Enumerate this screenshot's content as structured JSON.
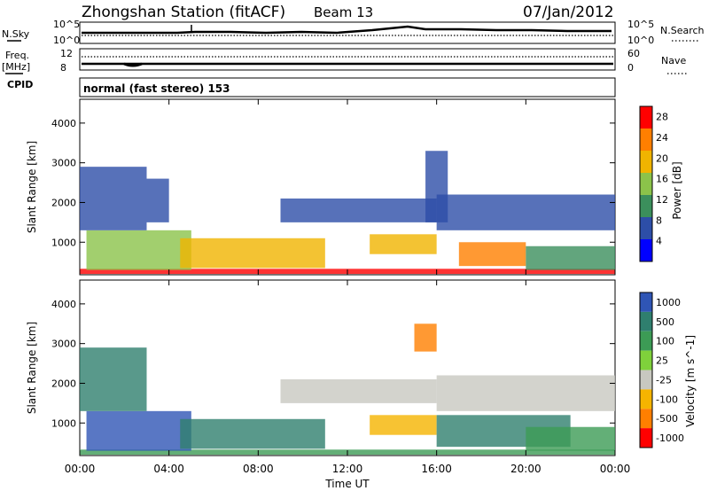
{
  "header": {
    "station": "Zhongshan Station (fitACF)",
    "beam": "Beam 13",
    "date": "07/Jan/2012"
  },
  "noise_panel": {
    "left_label": "N.Sky",
    "left_ticks": [
      "10^5",
      "10^0"
    ],
    "right_ticks": [
      "10^5",
      "10^0"
    ],
    "right_label": "N.Search"
  },
  "freq_panel": {
    "left_label_1": "Freq.",
    "left_label_2": "[MHz]",
    "left_ticks": [
      "12",
      "8"
    ],
    "right_ticks": [
      "60",
      "0"
    ],
    "right_label": "Nave",
    "cpid_label": "CPID"
  },
  "cpid_text": "normal (fast stereo) 153",
  "chart_data": [
    {
      "type": "heatmap",
      "name": "power",
      "ylabel": "Slant Range [km]",
      "ylim": [
        180,
        4600
      ],
      "yticks": [
        1000,
        2000,
        3000,
        4000
      ],
      "xlabel": "Time UT",
      "xlim": [
        0,
        24
      ],
      "xticks": [
        "00:00",
        "04:00",
        "08:00",
        "12:00",
        "16:00",
        "20:00",
        "00:00"
      ],
      "colorbar": {
        "label": "Power [dB]",
        "ticks": [
          4,
          8,
          12,
          16,
          20,
          24,
          28
        ],
        "range": [
          0,
          30
        ],
        "colors": [
          "#0000ff",
          "#2d4ea8",
          "#3b8f5c",
          "#8bc34a",
          "#f0b400",
          "#ff7f00",
          "#ff0000"
        ]
      },
      "bands": [
        {
          "t": [
            0,
            24
          ],
          "r": [
            200,
            330
          ],
          "level": 26
        },
        {
          "t": [
            0.3,
            5
          ],
          "r": [
            300,
            1300
          ],
          "level": 14
        },
        {
          "t": [
            4.5,
            11
          ],
          "r": [
            350,
            1100
          ],
          "level": 20
        },
        {
          "t": [
            0,
            3
          ],
          "r": [
            1300,
            2900
          ],
          "level": 6
        },
        {
          "t": [
            3,
            4
          ],
          "r": [
            1500,
            2600
          ],
          "level": 7
        },
        {
          "t": [
            9,
            16
          ],
          "r": [
            1500,
            2100
          ],
          "level": 6
        },
        {
          "t": [
            13,
            16
          ],
          "r": [
            700,
            1200
          ],
          "level": 21
        },
        {
          "t": [
            15.5,
            16.5
          ],
          "r": [
            1500,
            3300
          ],
          "level": 7
        },
        {
          "t": [
            16,
            24
          ],
          "r": [
            1300,
            2200
          ],
          "level": 8
        },
        {
          "t": [
            17,
            20
          ],
          "r": [
            400,
            1000
          ],
          "level": 22
        },
        {
          "t": [
            20,
            24
          ],
          "r": [
            300,
            900
          ],
          "level": 12
        }
      ]
    },
    {
      "type": "heatmap",
      "name": "velocity",
      "ylabel": "Slant Range [km]",
      "ylim": [
        180,
        4600
      ],
      "yticks": [
        1000,
        2000,
        3000,
        4000
      ],
      "xlabel": "Time UT",
      "xlim": [
        0,
        24
      ],
      "xticks": [
        "00:00",
        "04:00",
        "08:00",
        "12:00",
        "16:00",
        "20:00",
        "00:00"
      ],
      "colorbar": {
        "label": "Velocity [m s^-1]",
        "ticks": [
          "1000",
          "500",
          "100",
          "25",
          "-25",
          "-100",
          "-500",
          "-1000"
        ],
        "colors": [
          "#2f55b5",
          "#2f7f6e",
          "#3c9b55",
          "#7fd13b",
          "#c8c8c0",
          "#f5b400",
          "#ff7f00",
          "#ff0000"
        ]
      },
      "bands": [
        {
          "t": [
            0,
            24
          ],
          "r": [
            200,
            330
          ],
          "level": 2
        },
        {
          "t": [
            0.3,
            5
          ],
          "r": [
            300,
            1300
          ],
          "level": 0
        },
        {
          "t": [
            4.5,
            11
          ],
          "r": [
            350,
            1100
          ],
          "level": 1
        },
        {
          "t": [
            0,
            3
          ],
          "r": [
            1300,
            2900
          ],
          "level": 1
        },
        {
          "t": [
            9,
            16
          ],
          "r": [
            1500,
            2100
          ],
          "level": 4
        },
        {
          "t": [
            13,
            16
          ],
          "r": [
            700,
            1200
          ],
          "level": 5
        },
        {
          "t": [
            15,
            16
          ],
          "r": [
            2800,
            3500
          ],
          "level": 6
        },
        {
          "t": [
            16,
            24
          ],
          "r": [
            1300,
            2200
          ],
          "level": 4
        },
        {
          "t": [
            16,
            22
          ],
          "r": [
            400,
            1200
          ],
          "level": 1
        },
        {
          "t": [
            20,
            24
          ],
          "r": [
            300,
            900
          ],
          "level": 2
        }
      ]
    }
  ]
}
